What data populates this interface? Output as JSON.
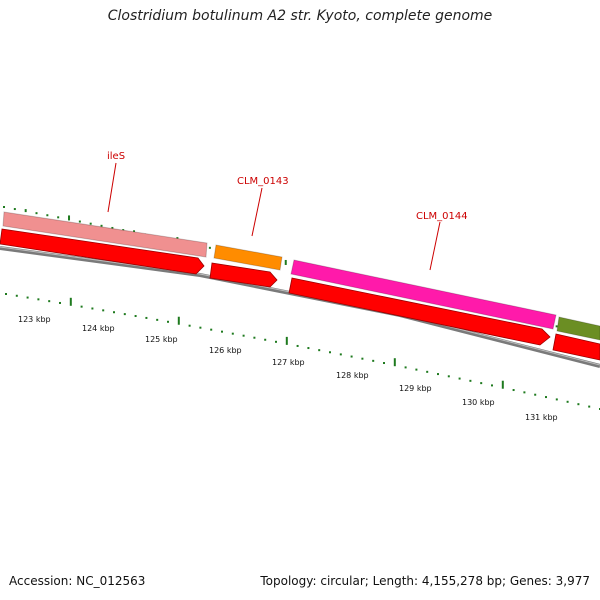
{
  "title": "Clostridium botulinum A2 str. Kyoto, complete genome",
  "accession": "Accession: NC_012563",
  "summary": "Topology: circular; Length: 4,155,278 bp; Genes: 3,977",
  "genes": [
    {
      "label": "ileS",
      "color": "#f09090"
    },
    {
      "label": "CLM_0143",
      "color": "#ff8c00"
    },
    {
      "label": "CLM_0144",
      "color": "#ff1aaa"
    },
    {
      "label": "",
      "color": "#6b8e23"
    }
  ],
  "cds_color": "#ff0000",
  "backbone_color": "#888888",
  "tick_color": "#1e7a1e",
  "tick_labels": [
    "123 kbp",
    "124 kbp",
    "125 kbp",
    "126 kbp",
    "127 kbp",
    "128 kbp",
    "129 kbp",
    "130 kbp",
    "131 kbp"
  ]
}
